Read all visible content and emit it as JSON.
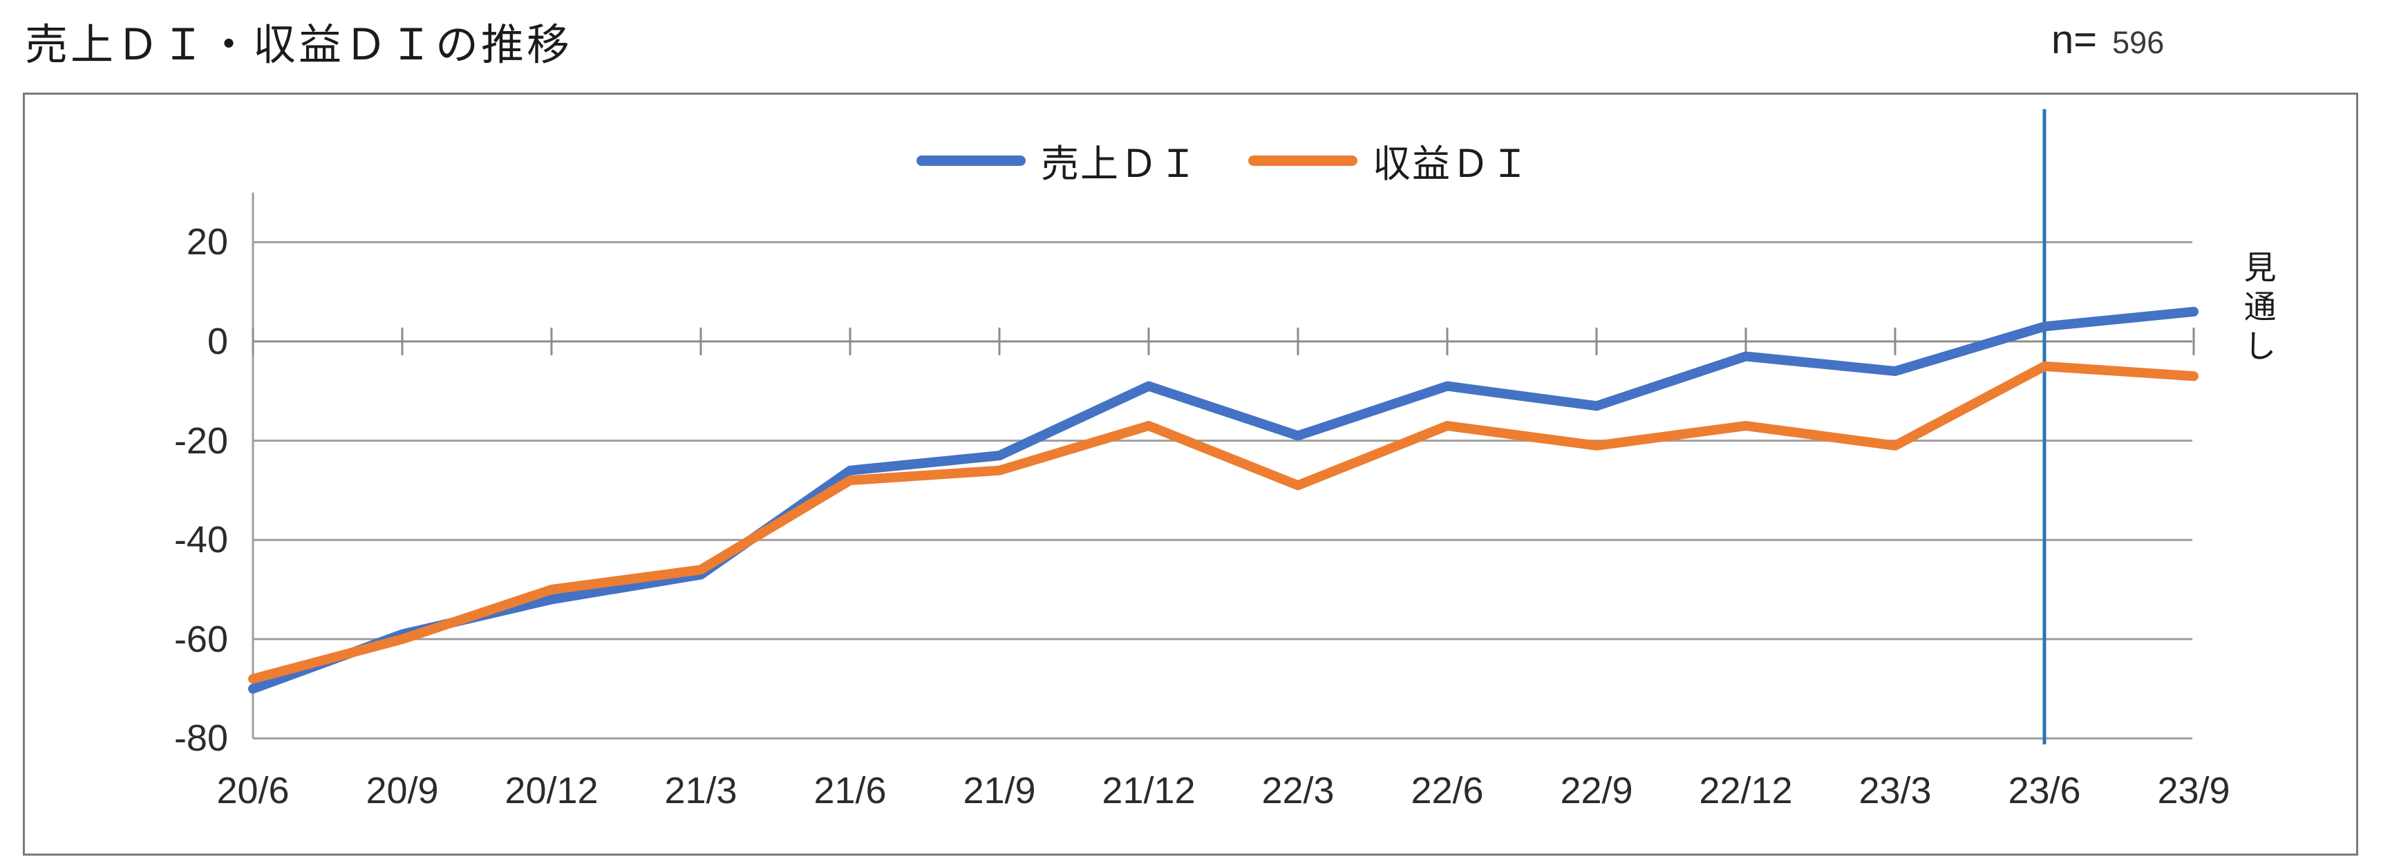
{
  "header": {
    "title": "売上ＤＩ・収益ＤＩの推移",
    "sample_prefix": "n=",
    "sample_value": "596"
  },
  "annotations": {
    "forecast_label": "見通し"
  },
  "chart_data": {
    "type": "line",
    "title": "売上ＤＩ・収益ＤＩの推移",
    "categories": [
      "20/6",
      "20/9",
      "20/12",
      "21/3",
      "21/6",
      "21/9",
      "21/12",
      "22/3",
      "22/6",
      "22/9",
      "22/12",
      "23/3",
      "23/6",
      "23/9"
    ],
    "series": [
      {
        "name": "売上ＤＩ",
        "color": "#4472C4",
        "values": [
          -70,
          -59,
          -52,
          -47,
          -26,
          -23,
          -9,
          -19,
          -9,
          -13,
          -3,
          -6,
          3,
          6
        ]
      },
      {
        "name": "収益ＤＩ",
        "color": "#ED7D31",
        "values": [
          -68,
          -60,
          -50,
          -46,
          -28,
          -26,
          -17,
          -29,
          -17,
          -21,
          -17,
          -21,
          -5,
          -7
        ]
      }
    ],
    "y_ticks": [
      "20",
      "0",
      "-20",
      "-40",
      "-60",
      "-80"
    ],
    "ylim": [
      -80,
      30
    ],
    "grid": true,
    "legend_position": "top-center",
    "x_axis_at": 0,
    "vline_index": 12,
    "vline_label": "見通し",
    "vline_color": "#2E75B6",
    "gridline_color": "#9e9e9e",
    "sample_size": 596
  }
}
